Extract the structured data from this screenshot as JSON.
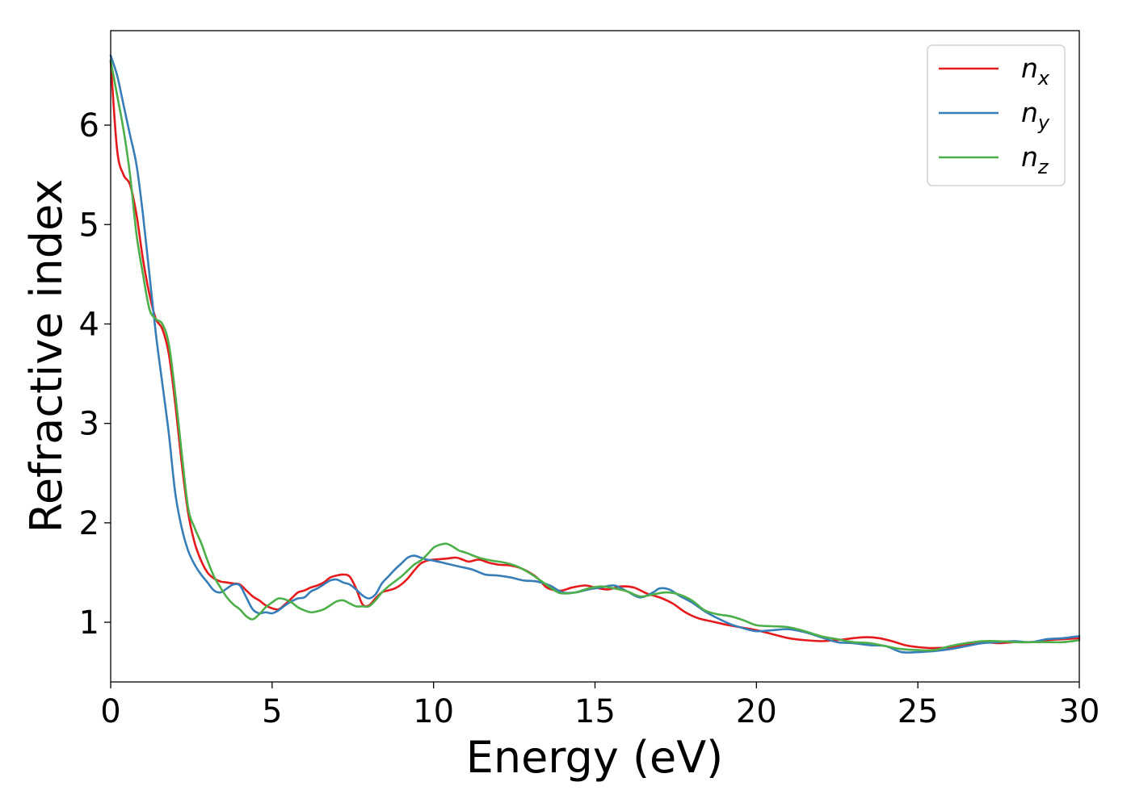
{
  "chart_data": {
    "type": "line",
    "xlabel": "Energy (eV)",
    "ylabel": "Refractive index",
    "xlim": [
      0,
      30
    ],
    "ylim": [
      0.4,
      6.95
    ],
    "xticks": [
      0,
      5,
      10,
      15,
      20,
      25,
      30
    ],
    "yticks": [
      1,
      2,
      3,
      4,
      5,
      6
    ],
    "grid": false,
    "legend_position": "top-right",
    "series": [
      {
        "name": "n",
        "subscript": "x",
        "color": "#e41a1c",
        "points": [
          [
            0,
            6.65
          ],
          [
            0.2,
            5.75
          ],
          [
            0.4,
            5.5
          ],
          [
            0.6,
            5.4
          ],
          [
            0.8,
            5.1
          ],
          [
            1.0,
            4.65
          ],
          [
            1.2,
            4.3
          ],
          [
            1.4,
            4.05
          ],
          [
            1.6,
            3.95
          ],
          [
            1.8,
            3.7
          ],
          [
            2.0,
            3.2
          ],
          [
            2.2,
            2.6
          ],
          [
            2.4,
            2.1
          ],
          [
            2.6,
            1.8
          ],
          [
            2.8,
            1.62
          ],
          [
            3.0,
            1.5
          ],
          [
            3.2,
            1.44
          ],
          [
            3.4,
            1.41
          ],
          [
            3.6,
            1.4
          ],
          [
            3.8,
            1.39
          ],
          [
            4.0,
            1.38
          ],
          [
            4.2,
            1.32
          ],
          [
            4.4,
            1.26
          ],
          [
            4.6,
            1.22
          ],
          [
            4.8,
            1.17
          ],
          [
            5.0,
            1.14
          ],
          [
            5.2,
            1.13
          ],
          [
            5.4,
            1.18
          ],
          [
            5.6,
            1.24
          ],
          [
            5.8,
            1.3
          ],
          [
            6.0,
            1.32
          ],
          [
            6.2,
            1.35
          ],
          [
            6.4,
            1.37
          ],
          [
            6.6,
            1.4
          ],
          [
            6.8,
            1.45
          ],
          [
            7.0,
            1.47
          ],
          [
            7.2,
            1.48
          ],
          [
            7.4,
            1.46
          ],
          [
            7.6,
            1.34
          ],
          [
            7.8,
            1.18
          ],
          [
            8.0,
            1.17
          ],
          [
            8.2,
            1.24
          ],
          [
            8.4,
            1.3
          ],
          [
            8.6,
            1.32
          ],
          [
            8.8,
            1.34
          ],
          [
            9.0,
            1.38
          ],
          [
            9.2,
            1.44
          ],
          [
            9.4,
            1.52
          ],
          [
            9.6,
            1.59
          ],
          [
            9.8,
            1.62
          ],
          [
            10.0,
            1.63
          ],
          [
            10.4,
            1.64
          ],
          [
            10.7,
            1.65
          ],
          [
            10.9,
            1.63
          ],
          [
            11.1,
            1.61
          ],
          [
            11.4,
            1.63
          ],
          [
            11.7,
            1.6
          ],
          [
            12.0,
            1.58
          ],
          [
            12.4,
            1.57
          ],
          [
            12.8,
            1.53
          ],
          [
            13.2,
            1.45
          ],
          [
            13.5,
            1.35
          ],
          [
            13.8,
            1.32
          ],
          [
            14.0,
            1.32
          ],
          [
            14.3,
            1.35
          ],
          [
            14.7,
            1.37
          ],
          [
            15.0,
            1.35
          ],
          [
            15.4,
            1.33
          ],
          [
            15.8,
            1.36
          ],
          [
            16.2,
            1.35
          ],
          [
            16.6,
            1.29
          ],
          [
            17.0,
            1.25
          ],
          [
            17.4,
            1.19
          ],
          [
            17.8,
            1.1
          ],
          [
            18.2,
            1.04
          ],
          [
            18.6,
            1.01
          ],
          [
            19.0,
            0.98
          ],
          [
            19.5,
            0.95
          ],
          [
            20.0,
            0.92
          ],
          [
            20.5,
            0.88
          ],
          [
            21.0,
            0.84
          ],
          [
            21.5,
            0.82
          ],
          [
            22.0,
            0.81
          ],
          [
            22.5,
            0.82
          ],
          [
            23.0,
            0.84
          ],
          [
            23.4,
            0.85
          ],
          [
            23.8,
            0.84
          ],
          [
            24.2,
            0.81
          ],
          [
            24.6,
            0.77
          ],
          [
            25.0,
            0.75
          ],
          [
            25.5,
            0.74
          ],
          [
            26.0,
            0.75
          ],
          [
            26.5,
            0.78
          ],
          [
            27.0,
            0.8
          ],
          [
            27.5,
            0.79
          ],
          [
            28.0,
            0.8
          ],
          [
            28.5,
            0.8
          ],
          [
            29.0,
            0.82
          ],
          [
            29.5,
            0.83
          ],
          [
            30.0,
            0.84
          ]
        ]
      },
      {
        "name": "n",
        "subscript": "y",
        "color": "#377eb8",
        "points": [
          [
            0,
            6.7
          ],
          [
            0.2,
            6.5
          ],
          [
            0.4,
            6.2
          ],
          [
            0.6,
            5.9
          ],
          [
            0.8,
            5.6
          ],
          [
            1.0,
            5.1
          ],
          [
            1.2,
            4.5
          ],
          [
            1.4,
            3.9
          ],
          [
            1.6,
            3.4
          ],
          [
            1.8,
            2.9
          ],
          [
            2.0,
            2.3
          ],
          [
            2.2,
            1.95
          ],
          [
            2.4,
            1.72
          ],
          [
            2.6,
            1.58
          ],
          [
            2.8,
            1.48
          ],
          [
            3.0,
            1.4
          ],
          [
            3.2,
            1.32
          ],
          [
            3.4,
            1.3
          ],
          [
            3.6,
            1.34
          ],
          [
            3.8,
            1.38
          ],
          [
            4.0,
            1.37
          ],
          [
            4.2,
            1.25
          ],
          [
            4.4,
            1.13
          ],
          [
            4.6,
            1.09
          ],
          [
            4.8,
            1.1
          ],
          [
            5.0,
            1.09
          ],
          [
            5.2,
            1.12
          ],
          [
            5.4,
            1.17
          ],
          [
            5.6,
            1.21
          ],
          [
            5.8,
            1.24
          ],
          [
            6.0,
            1.25
          ],
          [
            6.2,
            1.31
          ],
          [
            6.4,
            1.34
          ],
          [
            6.6,
            1.38
          ],
          [
            6.8,
            1.42
          ],
          [
            7.0,
            1.43
          ],
          [
            7.2,
            1.4
          ],
          [
            7.4,
            1.38
          ],
          [
            7.6,
            1.33
          ],
          [
            7.8,
            1.27
          ],
          [
            8.0,
            1.24
          ],
          [
            8.2,
            1.28
          ],
          [
            8.4,
            1.39
          ],
          [
            8.6,
            1.46
          ],
          [
            8.8,
            1.53
          ],
          [
            9.0,
            1.59
          ],
          [
            9.2,
            1.65
          ],
          [
            9.4,
            1.67
          ],
          [
            9.6,
            1.65
          ],
          [
            9.8,
            1.63
          ],
          [
            10.0,
            1.62
          ],
          [
            10.4,
            1.59
          ],
          [
            10.8,
            1.56
          ],
          [
            11.2,
            1.53
          ],
          [
            11.6,
            1.48
          ],
          [
            12.0,
            1.47
          ],
          [
            12.4,
            1.45
          ],
          [
            12.8,
            1.42
          ],
          [
            13.2,
            1.41
          ],
          [
            13.6,
            1.37
          ],
          [
            14.0,
            1.3
          ],
          [
            14.4,
            1.3
          ],
          [
            14.8,
            1.33
          ],
          [
            15.2,
            1.35
          ],
          [
            15.6,
            1.37
          ],
          [
            16.0,
            1.31
          ],
          [
            16.4,
            1.25
          ],
          [
            16.8,
            1.3
          ],
          [
            17.0,
            1.34
          ],
          [
            17.3,
            1.33
          ],
          [
            17.6,
            1.27
          ],
          [
            18.0,
            1.2
          ],
          [
            18.4,
            1.11
          ],
          [
            18.8,
            1.04
          ],
          [
            19.2,
            0.98
          ],
          [
            19.6,
            0.94
          ],
          [
            20.0,
            0.91
          ],
          [
            20.5,
            0.92
          ],
          [
            21.0,
            0.93
          ],
          [
            21.5,
            0.9
          ],
          [
            22.0,
            0.85
          ],
          [
            22.5,
            0.8
          ],
          [
            23.0,
            0.79
          ],
          [
            23.5,
            0.77
          ],
          [
            24.0,
            0.76
          ],
          [
            24.5,
            0.7
          ],
          [
            25.0,
            0.7
          ],
          [
            25.5,
            0.71
          ],
          [
            26.0,
            0.73
          ],
          [
            26.5,
            0.76
          ],
          [
            27.0,
            0.79
          ],
          [
            27.5,
            0.8
          ],
          [
            28.0,
            0.81
          ],
          [
            28.5,
            0.8
          ],
          [
            29.0,
            0.83
          ],
          [
            29.5,
            0.84
          ],
          [
            30.0,
            0.86
          ]
        ]
      },
      {
        "name": "n",
        "subscript": "z",
        "color": "#4daf4a",
        "points": [
          [
            0,
            6.65
          ],
          [
            0.2,
            6.3
          ],
          [
            0.4,
            5.95
          ],
          [
            0.6,
            5.5
          ],
          [
            0.8,
            4.9
          ],
          [
            1.0,
            4.5
          ],
          [
            1.2,
            4.15
          ],
          [
            1.4,
            4.05
          ],
          [
            1.6,
            4.0
          ],
          [
            1.8,
            3.8
          ],
          [
            2.0,
            3.3
          ],
          [
            2.2,
            2.7
          ],
          [
            2.4,
            2.15
          ],
          [
            2.6,
            1.95
          ],
          [
            2.8,
            1.8
          ],
          [
            3.0,
            1.62
          ],
          [
            3.2,
            1.46
          ],
          [
            3.4,
            1.35
          ],
          [
            3.6,
            1.25
          ],
          [
            3.8,
            1.18
          ],
          [
            4.0,
            1.13
          ],
          [
            4.2,
            1.06
          ],
          [
            4.4,
            1.03
          ],
          [
            4.6,
            1.08
          ],
          [
            4.8,
            1.15
          ],
          [
            5.0,
            1.2
          ],
          [
            5.2,
            1.24
          ],
          [
            5.4,
            1.23
          ],
          [
            5.6,
            1.2
          ],
          [
            5.8,
            1.15
          ],
          [
            6.0,
            1.12
          ],
          [
            6.2,
            1.1
          ],
          [
            6.4,
            1.11
          ],
          [
            6.6,
            1.13
          ],
          [
            6.8,
            1.17
          ],
          [
            7.0,
            1.21
          ],
          [
            7.2,
            1.22
          ],
          [
            7.4,
            1.19
          ],
          [
            7.6,
            1.16
          ],
          [
            7.8,
            1.16
          ],
          [
            8.0,
            1.16
          ],
          [
            8.2,
            1.22
          ],
          [
            8.4,
            1.3
          ],
          [
            8.6,
            1.36
          ],
          [
            8.8,
            1.41
          ],
          [
            9.0,
            1.46
          ],
          [
            9.2,
            1.52
          ],
          [
            9.4,
            1.58
          ],
          [
            9.6,
            1.62
          ],
          [
            9.8,
            1.68
          ],
          [
            10.0,
            1.75
          ],
          [
            10.2,
            1.78
          ],
          [
            10.4,
            1.79
          ],
          [
            10.6,
            1.76
          ],
          [
            10.8,
            1.72
          ],
          [
            11.0,
            1.7
          ],
          [
            11.4,
            1.65
          ],
          [
            11.8,
            1.62
          ],
          [
            12.2,
            1.6
          ],
          [
            12.6,
            1.56
          ],
          [
            13.0,
            1.49
          ],
          [
            13.4,
            1.4
          ],
          [
            13.8,
            1.31
          ],
          [
            14.0,
            1.29
          ],
          [
            14.4,
            1.3
          ],
          [
            14.8,
            1.34
          ],
          [
            15.2,
            1.36
          ],
          [
            15.6,
            1.34
          ],
          [
            16.0,
            1.31
          ],
          [
            16.4,
            1.26
          ],
          [
            16.8,
            1.28
          ],
          [
            17.2,
            1.3
          ],
          [
            17.6,
            1.28
          ],
          [
            18.0,
            1.22
          ],
          [
            18.4,
            1.12
          ],
          [
            18.8,
            1.08
          ],
          [
            19.2,
            1.06
          ],
          [
            19.6,
            1.02
          ],
          [
            20.0,
            0.97
          ],
          [
            20.5,
            0.96
          ],
          [
            21.0,
            0.95
          ],
          [
            21.5,
            0.91
          ],
          [
            22.0,
            0.86
          ],
          [
            22.5,
            0.83
          ],
          [
            23.0,
            0.8
          ],
          [
            23.5,
            0.79
          ],
          [
            24.0,
            0.76
          ],
          [
            24.5,
            0.73
          ],
          [
            25.0,
            0.72
          ],
          [
            25.5,
            0.72
          ],
          [
            26.0,
            0.76
          ],
          [
            26.5,
            0.79
          ],
          [
            27.0,
            0.81
          ],
          [
            27.5,
            0.81
          ],
          [
            28.0,
            0.8
          ],
          [
            28.5,
            0.8
          ],
          [
            29.0,
            0.8
          ],
          [
            29.5,
            0.8
          ],
          [
            30.0,
            0.82
          ]
        ]
      }
    ]
  }
}
